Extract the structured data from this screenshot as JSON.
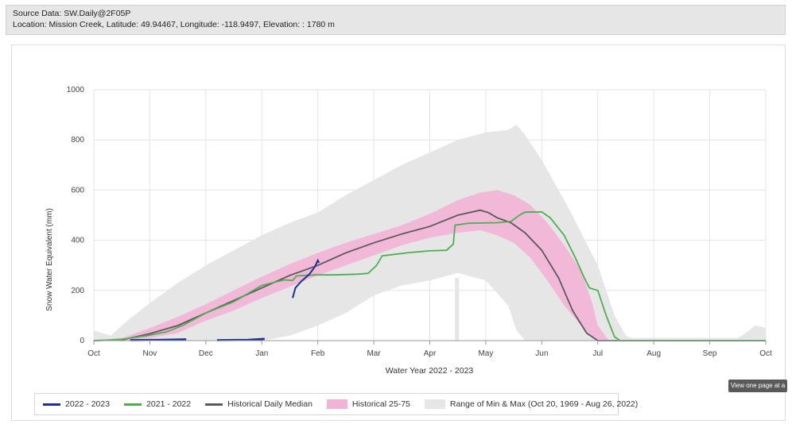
{
  "header": {
    "source": "Source Data: SW.Daily@2F05P",
    "location": "Location: Mission Creek, Latitude: 49.94467, Longitude: -118.9497, Elevation: : 1780 m"
  },
  "view_button": "View one page at a",
  "chart_data": {
    "type": "line",
    "title": "",
    "xlabel": "Water Year 2022 - 2023",
    "ylabel": "Snow Water Equivalent (mm)",
    "x_unit": "month_index",
    "x_tick_labels": [
      "Oct",
      "Nov",
      "Dec",
      "Jan",
      "Feb",
      "Mar",
      "Apr",
      "May",
      "Jun",
      "Jul",
      "Aug",
      "Sep",
      "Oct"
    ],
    "y_ticks": [
      0,
      200,
      400,
      600,
      800,
      1000
    ],
    "ylim": [
      0,
      1000
    ],
    "xlim": [
      0,
      12
    ],
    "grid": true,
    "legend_position": "bottom",
    "colors": {
      "current": "#1f2f8f",
      "previous": "#4caf50",
      "median": "#5a5a5a",
      "band_25_75": "#f2b3d6",
      "band_min_max": "#e6e6e6"
    },
    "series": [
      {
        "name": "2022 - 2023",
        "segments": [
          [
            [
              0.65,
              2
            ],
            [
              1.2,
              3
            ],
            [
              1.65,
              5
            ]
          ],
          [
            [
              2.2,
              2
            ],
            [
              2.75,
              3
            ],
            [
              3.05,
              7
            ]
          ]
        ],
        "points": [
          [
            0.5,
            2
          ],
          [
            0.8,
            5
          ],
          [
            1.0,
            6
          ],
          [
            2.0,
            5
          ],
          [
            2.6,
            2
          ],
          [
            3.1,
            8
          ],
          [
            3.55,
            170
          ],
          [
            3.6,
            210
          ],
          [
            3.7,
            235
          ],
          [
            3.85,
            265
          ],
          [
            3.95,
            295
          ],
          [
            4.0,
            320
          ],
          [
            4.02,
            310
          ]
        ]
      },
      {
        "name": "2021 - 2022",
        "points": [
          [
            0,
            0
          ],
          [
            0.5,
            5
          ],
          [
            0.95,
            20
          ],
          [
            1.3,
            35
          ],
          [
            1.6,
            62
          ],
          [
            2.0,
            110
          ],
          [
            2.5,
            155
          ],
          [
            3.0,
            220
          ],
          [
            3.4,
            242
          ],
          [
            3.55,
            240
          ],
          [
            3.62,
            258
          ],
          [
            3.95,
            262
          ],
          [
            4.3,
            262
          ],
          [
            4.7,
            265
          ],
          [
            4.9,
            268
          ],
          [
            5.05,
            300
          ],
          [
            5.15,
            338
          ],
          [
            5.6,
            350
          ],
          [
            6.0,
            358
          ],
          [
            6.3,
            360
          ],
          [
            6.42,
            385
          ],
          [
            6.45,
            460
          ],
          [
            6.7,
            468
          ],
          [
            7.2,
            470
          ],
          [
            7.45,
            475
          ],
          [
            7.6,
            500
          ],
          [
            7.7,
            512
          ],
          [
            8.0,
            513
          ],
          [
            8.15,
            490
          ],
          [
            8.4,
            420
          ],
          [
            8.6,
            330
          ],
          [
            8.75,
            255
          ],
          [
            8.85,
            210
          ],
          [
            9.0,
            200
          ],
          [
            9.15,
            100
          ],
          [
            9.3,
            15
          ],
          [
            9.4,
            0
          ],
          [
            12.0,
            0
          ]
        ]
      },
      {
        "name": "Historical Daily Median",
        "points": [
          [
            0,
            0
          ],
          [
            0.5,
            3
          ],
          [
            1.0,
            28
          ],
          [
            1.5,
            60
          ],
          [
            2.0,
            110
          ],
          [
            2.5,
            160
          ],
          [
            3.0,
            210
          ],
          [
            3.5,
            260
          ],
          [
            4.0,
            300
          ],
          [
            4.5,
            350
          ],
          [
            5.0,
            390
          ],
          [
            5.5,
            425
          ],
          [
            6.0,
            455
          ],
          [
            6.5,
            500
          ],
          [
            6.9,
            520
          ],
          [
            7.05,
            510
          ],
          [
            7.2,
            490
          ],
          [
            7.45,
            470
          ],
          [
            7.7,
            430
          ],
          [
            8.0,
            360
          ],
          [
            8.3,
            250
          ],
          [
            8.55,
            120
          ],
          [
            8.8,
            30
          ],
          [
            9.0,
            0
          ],
          [
            12.0,
            0
          ]
        ]
      }
    ],
    "bands": [
      {
        "name": "Historical 25-75",
        "x": [
          0,
          0.5,
          1.0,
          1.5,
          2.0,
          2.5,
          3.0,
          3.5,
          4.0,
          4.5,
          5.0,
          5.5,
          6.0,
          6.5,
          6.9,
          7.2,
          7.5,
          7.8,
          8.1,
          8.4,
          8.7,
          8.9,
          9.0,
          9.2,
          12.0
        ],
        "upper": [
          0,
          10,
          50,
          95,
          145,
          200,
          255,
          305,
          350,
          390,
          425,
          460,
          505,
          560,
          590,
          600,
          580,
          540,
          470,
          380,
          280,
          150,
          60,
          0,
          0
        ],
        "lower": [
          0,
          0,
          10,
          30,
          80,
          120,
          170,
          215,
          260,
          300,
          340,
          380,
          410,
          430,
          440,
          420,
          390,
          330,
          240,
          140,
          60,
          10,
          0,
          0,
          0
        ]
      },
      {
        "name": "Range of Min & Max (Oct 20, 1969 - Aug 26, 2022)",
        "x": [
          0,
          0.3,
          0.6,
          1.0,
          1.5,
          2.0,
          2.5,
          3.0,
          3.5,
          4.0,
          4.5,
          5.0,
          5.5,
          6.0,
          6.5,
          7.0,
          7.4,
          7.55,
          7.7,
          8.0,
          8.5,
          9.0,
          9.3,
          9.5,
          9.6,
          11.5,
          11.7,
          11.8,
          11.95,
          12.0
        ],
        "upper": [
          40,
          20,
          80,
          150,
          230,
          300,
          360,
          420,
          470,
          510,
          580,
          640,
          700,
          750,
          800,
          830,
          840,
          860,
          820,
          720,
          520,
          300,
          100,
          20,
          10,
          10,
          40,
          60,
          55,
          45
        ],
        "lower": [
          0,
          0,
          0,
          0,
          0,
          0,
          0,
          0,
          20,
          60,
          110,
          180,
          220,
          240,
          270,
          240,
          140,
          40,
          0,
          0,
          0,
          0,
          0,
          0,
          0,
          0,
          0,
          0,
          0,
          0
        ]
      }
    ]
  }
}
